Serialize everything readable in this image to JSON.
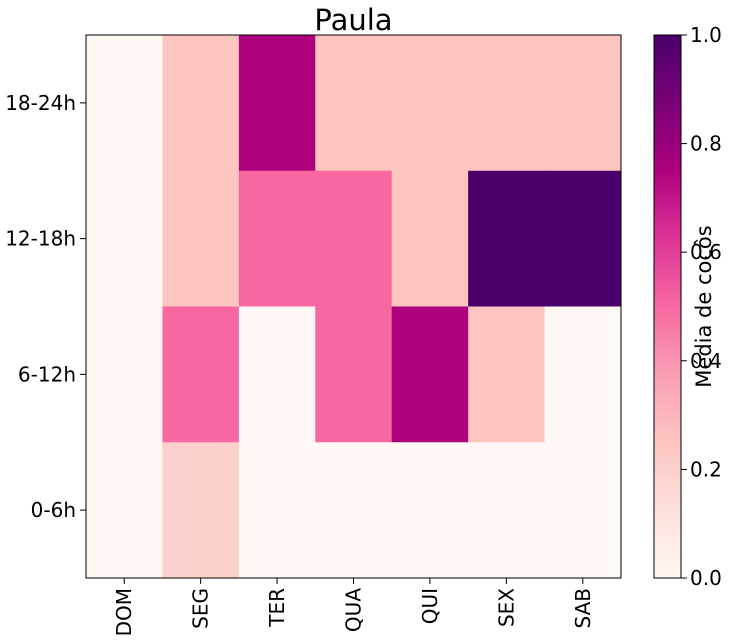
{
  "chart_data": {
    "type": "heatmap",
    "title": "Paula",
    "x_categories": [
      "DOM",
      "SEG",
      "TER",
      "QUA",
      "QUI",
      "SEX",
      "SAB"
    ],
    "y_categories": [
      "18-24h",
      "12-18h",
      "6-12h",
      "0-6h"
    ],
    "values": [
      [
        0.0,
        0.25,
        0.75,
        0.25,
        0.25,
        0.25,
        0.25
      ],
      [
        0.0,
        0.25,
        0.5,
        0.5,
        0.25,
        1.0,
        1.0
      ],
      [
        0.0,
        0.5,
        0.0,
        0.5,
        0.75,
        0.25,
        0.0
      ],
      [
        0.0,
        0.2,
        0.0,
        0.0,
        0.0,
        0.0,
        0.0
      ]
    ],
    "colorbar": {
      "label": "Média de cocôs",
      "range": [
        0.0,
        1.0
      ],
      "ticks": [
        "0.0",
        "0.2",
        "0.4",
        "0.6",
        "0.8",
        "1.0"
      ]
    },
    "colormap": "RdPu",
    "colormap_stops": [
      "#fff7f3",
      "#fde0dd",
      "#fcc5c0",
      "#fa9fb5",
      "#f768a1",
      "#dd3497",
      "#ae017e",
      "#7a0177",
      "#49006a"
    ]
  }
}
